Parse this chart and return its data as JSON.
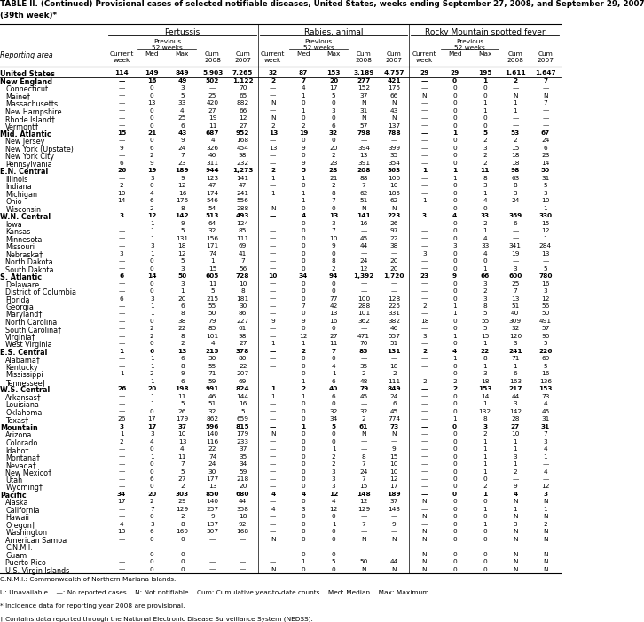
{
  "title_line1": "TABLE II. (Continued) Provisional cases of selected notifiable diseases, United States, weeks ending September 27, 2008, and September 29, 2007",
  "title_line2": "(39th week)*",
  "disease1": "Pertussis",
  "disease2": "Rabies, animal",
  "disease3": "Rocky Mountain spotted fever",
  "rows": [
    [
      "United States",
      "114",
      "149",
      "849",
      "5,903",
      "7,265",
      "32",
      "87",
      "153",
      "3,189",
      "4,757",
      "29",
      "29",
      "195",
      "1,611",
      "1,647",
      true
    ],
    [
      "New England",
      "—",
      "16",
      "49",
      "502",
      "1,122",
      "2",
      "7",
      "20",
      "277",
      "421",
      "—",
      "0",
      "1",
      "2",
      "7",
      true
    ],
    [
      "Connecticut",
      "—",
      "0",
      "3",
      "—",
      "70",
      "—",
      "4",
      "17",
      "152",
      "175",
      "—",
      "0",
      "0",
      "—",
      "—",
      false
    ],
    [
      "Maine†",
      "—",
      "0",
      "5",
      "25",
      "65",
      "—",
      "1",
      "5",
      "37",
      "66",
      "N",
      "0",
      "0",
      "N",
      "N",
      false
    ],
    [
      "Massachusetts",
      "—",
      "13",
      "33",
      "420",
      "882",
      "N",
      "0",
      "0",
      "N",
      "N",
      "—",
      "0",
      "1",
      "1",
      "7",
      false
    ],
    [
      "New Hampshire",
      "—",
      "0",
      "4",
      "27",
      "66",
      "—",
      "1",
      "3",
      "31",
      "43",
      "—",
      "0",
      "1",
      "1",
      "—",
      false
    ],
    [
      "Rhode Island†",
      "—",
      "0",
      "25",
      "19",
      "12",
      "N",
      "0",
      "0",
      "N",
      "N",
      "—",
      "0",
      "0",
      "—",
      "—",
      false
    ],
    [
      "Vermont†",
      "—",
      "0",
      "6",
      "11",
      "27",
      "2",
      "2",
      "6",
      "57",
      "137",
      "—",
      "0",
      "0",
      "—",
      "—",
      false
    ],
    [
      "Mid. Atlantic",
      "15",
      "21",
      "43",
      "687",
      "952",
      "13",
      "19",
      "32",
      "798",
      "788",
      "—",
      "1",
      "5",
      "53",
      "67",
      true
    ],
    [
      "New Jersey",
      "—",
      "0",
      "9",
      "4",
      "168",
      "—",
      "0",
      "0",
      "—",
      "—",
      "—",
      "0",
      "2",
      "2",
      "24",
      false
    ],
    [
      "New York (Upstate)",
      "9",
      "6",
      "24",
      "326",
      "454",
      "13",
      "9",
      "20",
      "394",
      "399",
      "—",
      "0",
      "3",
      "15",
      "6",
      false
    ],
    [
      "New York City",
      "—",
      "2",
      "7",
      "46",
      "98",
      "—",
      "0",
      "2",
      "13",
      "35",
      "—",
      "0",
      "2",
      "18",
      "23",
      false
    ],
    [
      "Pennsylvania",
      "6",
      "9",
      "23",
      "311",
      "232",
      "—",
      "9",
      "23",
      "391",
      "354",
      "—",
      "0",
      "2",
      "18",
      "14",
      false
    ],
    [
      "E.N. Central",
      "26",
      "19",
      "189",
      "944",
      "1,273",
      "2",
      "5",
      "28",
      "208",
      "363",
      "1",
      "1",
      "11",
      "98",
      "50",
      true
    ],
    [
      "Illinois",
      "—",
      "3",
      "9",
      "123",
      "141",
      "1",
      "1",
      "21",
      "88",
      "106",
      "—",
      "1",
      "8",
      "63",
      "31",
      false
    ],
    [
      "Indiana",
      "2",
      "0",
      "12",
      "47",
      "47",
      "—",
      "0",
      "2",
      "7",
      "10",
      "—",
      "0",
      "3",
      "8",
      "5",
      false
    ],
    [
      "Michigan",
      "10",
      "4",
      "16",
      "174",
      "241",
      "1",
      "1",
      "8",
      "62",
      "185",
      "—",
      "0",
      "1",
      "3",
      "3",
      false
    ],
    [
      "Ohio",
      "14",
      "6",
      "176",
      "546",
      "556",
      "—",
      "1",
      "7",
      "51",
      "62",
      "1",
      "0",
      "4",
      "24",
      "10",
      false
    ],
    [
      "Wisconsin",
      "—",
      "2",
      "8",
      "54",
      "288",
      "N",
      "0",
      "0",
      "N",
      "N",
      "—",
      "0",
      "0",
      "—",
      "1",
      false
    ],
    [
      "W.N. Central",
      "3",
      "12",
      "142",
      "513",
      "493",
      "—",
      "4",
      "13",
      "141",
      "223",
      "3",
      "4",
      "33",
      "369",
      "330",
      true
    ],
    [
      "Iowa",
      "—",
      "1",
      "9",
      "64",
      "124",
      "—",
      "0",
      "3",
      "16",
      "26",
      "—",
      "0",
      "2",
      "6",
      "15",
      false
    ],
    [
      "Kansas",
      "—",
      "1",
      "5",
      "32",
      "85",
      "—",
      "0",
      "7",
      "—",
      "97",
      "—",
      "0",
      "1",
      "—",
      "12",
      false
    ],
    [
      "Minnesota",
      "—",
      "1",
      "131",
      "156",
      "111",
      "—",
      "0",
      "10",
      "45",
      "22",
      "—",
      "0",
      "4",
      "—",
      "1",
      false
    ],
    [
      "Missouri",
      "—",
      "3",
      "18",
      "171",
      "69",
      "—",
      "0",
      "9",
      "44",
      "38",
      "—",
      "3",
      "33",
      "341",
      "284",
      false
    ],
    [
      "Nebraska†",
      "3",
      "1",
      "12",
      "74",
      "41",
      "—",
      "0",
      "0",
      "—",
      "—",
      "3",
      "0",
      "4",
      "19",
      "13",
      false
    ],
    [
      "North Dakota",
      "—",
      "0",
      "5",
      "1",
      "7",
      "—",
      "0",
      "8",
      "24",
      "20",
      "—",
      "0",
      "0",
      "—",
      "—",
      false
    ],
    [
      "South Dakota",
      "—",
      "0",
      "3",
      "15",
      "56",
      "—",
      "0",
      "2",
      "12",
      "20",
      "—",
      "0",
      "1",
      "3",
      "5",
      false
    ],
    [
      "S. Atlantic",
      "6",
      "14",
      "50",
      "605",
      "728",
      "10",
      "34",
      "94",
      "1,392",
      "1,720",
      "23",
      "9",
      "66",
      "600",
      "780",
      true
    ],
    [
      "Delaware",
      "—",
      "0",
      "3",
      "11",
      "10",
      "—",
      "0",
      "0",
      "—",
      "—",
      "—",
      "0",
      "3",
      "25",
      "16",
      false
    ],
    [
      "District of Columbia",
      "—",
      "0",
      "1",
      "5",
      "8",
      "—",
      "0",
      "0",
      "—",
      "—",
      "—",
      "0",
      "2",
      "7",
      "3",
      false
    ],
    [
      "Florida",
      "6",
      "3",
      "20",
      "215",
      "181",
      "—",
      "0",
      "77",
      "100",
      "128",
      "—",
      "0",
      "3",
      "13",
      "12",
      false
    ],
    [
      "Georgia",
      "—",
      "1",
      "6",
      "55",
      "30",
      "—",
      "7",
      "42",
      "288",
      "225",
      "2",
      "1",
      "8",
      "51",
      "56",
      false
    ],
    [
      "Maryland†",
      "—",
      "1",
      "8",
      "50",
      "86",
      "—",
      "0",
      "13",
      "101",
      "331",
      "—",
      "1",
      "5",
      "40",
      "50",
      false
    ],
    [
      "North Carolina",
      "—",
      "0",
      "38",
      "79",
      "227",
      "9",
      "9",
      "16",
      "362",
      "382",
      "18",
      "0",
      "55",
      "309",
      "491",
      false
    ],
    [
      "South Carolina†",
      "—",
      "2",
      "22",
      "85",
      "61",
      "—",
      "0",
      "0",
      "—",
      "46",
      "—",
      "0",
      "5",
      "32",
      "57",
      false
    ],
    [
      "Virginia†",
      "—",
      "2",
      "8",
      "101",
      "98",
      "—",
      "12",
      "27",
      "471",
      "557",
      "3",
      "1",
      "15",
      "120",
      "90",
      false
    ],
    [
      "West Virginia",
      "—",
      "0",
      "2",
      "4",
      "27",
      "1",
      "1",
      "11",
      "70",
      "51",
      "—",
      "0",
      "1",
      "3",
      "5",
      false
    ],
    [
      "E.S. Central",
      "1",
      "6",
      "13",
      "215",
      "378",
      "—",
      "2",
      "7",
      "85",
      "131",
      "2",
      "4",
      "22",
      "241",
      "226",
      true
    ],
    [
      "Alabama†",
      "—",
      "1",
      "6",
      "30",
      "80",
      "—",
      "0",
      "0",
      "—",
      "—",
      "—",
      "1",
      "8",
      "71",
      "69",
      false
    ],
    [
      "Kentucky",
      "—",
      "1",
      "8",
      "55",
      "22",
      "—",
      "0",
      "4",
      "35",
      "18",
      "—",
      "0",
      "1",
      "1",
      "5",
      false
    ],
    [
      "Mississippi",
      "1",
      "2",
      "9",
      "71",
      "207",
      "—",
      "0",
      "1",
      "2",
      "2",
      "—",
      "0",
      "3",
      "6",
      "16",
      false
    ],
    [
      "Tennessee†",
      "—",
      "1",
      "6",
      "59",
      "69",
      "—",
      "1",
      "6",
      "48",
      "111",
      "2",
      "2",
      "18",
      "163",
      "136",
      false
    ],
    [
      "W.S. Central",
      "26",
      "20",
      "198",
      "991",
      "824",
      "1",
      "2",
      "40",
      "79",
      "849",
      "—",
      "2",
      "153",
      "217",
      "153",
      true
    ],
    [
      "Arkansas†",
      "—",
      "1",
      "11",
      "46",
      "144",
      "1",
      "1",
      "6",
      "45",
      "24",
      "—",
      "0",
      "14",
      "44",
      "73",
      false
    ],
    [
      "Louisiana",
      "—",
      "1",
      "5",
      "51",
      "16",
      "—",
      "0",
      "0",
      "—",
      "6",
      "—",
      "0",
      "1",
      "3",
      "4",
      false
    ],
    [
      "Oklahoma",
      "—",
      "0",
      "26",
      "32",
      "5",
      "—",
      "0",
      "32",
      "32",
      "45",
      "—",
      "0",
      "132",
      "142",
      "45",
      false
    ],
    [
      "Texas†",
      "26",
      "17",
      "179",
      "862",
      "659",
      "—",
      "0",
      "34",
      "2",
      "774",
      "—",
      "1",
      "8",
      "28",
      "31",
      false
    ],
    [
      "Mountain",
      "3",
      "17",
      "37",
      "596",
      "815",
      "—",
      "1",
      "5",
      "61",
      "73",
      "—",
      "0",
      "3",
      "27",
      "31",
      true
    ],
    [
      "Arizona",
      "1",
      "3",
      "10",
      "140",
      "179",
      "N",
      "0",
      "0",
      "N",
      "N",
      "—",
      "0",
      "2",
      "10",
      "7",
      false
    ],
    [
      "Colorado",
      "2",
      "4",
      "13",
      "116",
      "233",
      "—",
      "0",
      "0",
      "—",
      "—",
      "—",
      "0",
      "1",
      "1",
      "3",
      false
    ],
    [
      "Idaho†",
      "—",
      "0",
      "4",
      "22",
      "37",
      "—",
      "0",
      "1",
      "—",
      "9",
      "—",
      "0",
      "1",
      "1",
      "4",
      false
    ],
    [
      "Montana†",
      "—",
      "1",
      "11",
      "74",
      "35",
      "—",
      "0",
      "2",
      "8",
      "15",
      "—",
      "0",
      "1",
      "3",
      "1",
      false
    ],
    [
      "Nevada†",
      "—",
      "0",
      "7",
      "24",
      "34",
      "—",
      "0",
      "2",
      "7",
      "10",
      "—",
      "0",
      "1",
      "1",
      "—",
      false
    ],
    [
      "New Mexico†",
      "—",
      "0",
      "5",
      "30",
      "59",
      "—",
      "0",
      "3",
      "24",
      "10",
      "—",
      "0",
      "1",
      "2",
      "4",
      false
    ],
    [
      "Utah",
      "—",
      "6",
      "27",
      "177",
      "218",
      "—",
      "0",
      "3",
      "7",
      "12",
      "—",
      "0",
      "0",
      "—",
      "—",
      false
    ],
    [
      "Wyoming†",
      "—",
      "0",
      "2",
      "13",
      "20",
      "—",
      "0",
      "3",
      "15",
      "17",
      "—",
      "0",
      "2",
      "9",
      "12",
      false
    ],
    [
      "Pacific",
      "34",
      "20",
      "303",
      "850",
      "680",
      "4",
      "4",
      "12",
      "148",
      "189",
      "—",
      "0",
      "1",
      "4",
      "3",
      true
    ],
    [
      "Alaska",
      "17",
      "2",
      "29",
      "140",
      "44",
      "—",
      "0",
      "4",
      "12",
      "37",
      "N",
      "0",
      "0",
      "N",
      "N",
      false
    ],
    [
      "California",
      "—",
      "7",
      "129",
      "257",
      "358",
      "4",
      "3",
      "12",
      "129",
      "143",
      "—",
      "0",
      "1",
      "1",
      "1",
      false
    ],
    [
      "Hawaii",
      "—",
      "0",
      "2",
      "9",
      "18",
      "—",
      "0",
      "0",
      "—",
      "—",
      "N",
      "0",
      "0",
      "N",
      "N",
      false
    ],
    [
      "Oregon†",
      "4",
      "3",
      "8",
      "137",
      "92",
      "—",
      "0",
      "1",
      "7",
      "9",
      "—",
      "0",
      "1",
      "3",
      "2",
      false
    ],
    [
      "Washington",
      "13",
      "6",
      "169",
      "307",
      "168",
      "—",
      "0",
      "0",
      "—",
      "—",
      "N",
      "0",
      "0",
      "N",
      "N",
      false
    ],
    [
      "American Samoa",
      "—",
      "0",
      "0",
      "—",
      "—",
      "N",
      "0",
      "0",
      "N",
      "N",
      "N",
      "0",
      "0",
      "N",
      "N",
      false
    ],
    [
      "C.N.M.I.",
      "—",
      "—",
      "—",
      "—",
      "—",
      "—",
      "—",
      "—",
      "—",
      "—",
      "—",
      "—",
      "—",
      "—",
      "—",
      false
    ],
    [
      "Guam",
      "—",
      "0",
      "0",
      "—",
      "—",
      "—",
      "0",
      "0",
      "—",
      "—",
      "N",
      "0",
      "0",
      "N",
      "N",
      false
    ],
    [
      "Puerto Rico",
      "—",
      "0",
      "0",
      "—",
      "—",
      "—",
      "1",
      "5",
      "50",
      "44",
      "N",
      "0",
      "0",
      "N",
      "N",
      false
    ],
    [
      "U.S. Virgin Islands",
      "—",
      "0",
      "0",
      "—",
      "—",
      "N",
      "0",
      "0",
      "N",
      "N",
      "N",
      "0",
      "0",
      "N",
      "N",
      false
    ]
  ],
  "footnotes": [
    "C.N.M.I.: Commonwealth of Northern Mariana Islands.",
    "U: Unavailable.   —: No reported cases.   N: Not notifiable.   Cum: Cumulative year-to-date counts.   Med: Median.   Max: Maximum.",
    "* Incidence data for reporting year 2008 are provisional.",
    "† Contains data reported through the National Electronic Disease Surveillance System (NEDSS)."
  ]
}
